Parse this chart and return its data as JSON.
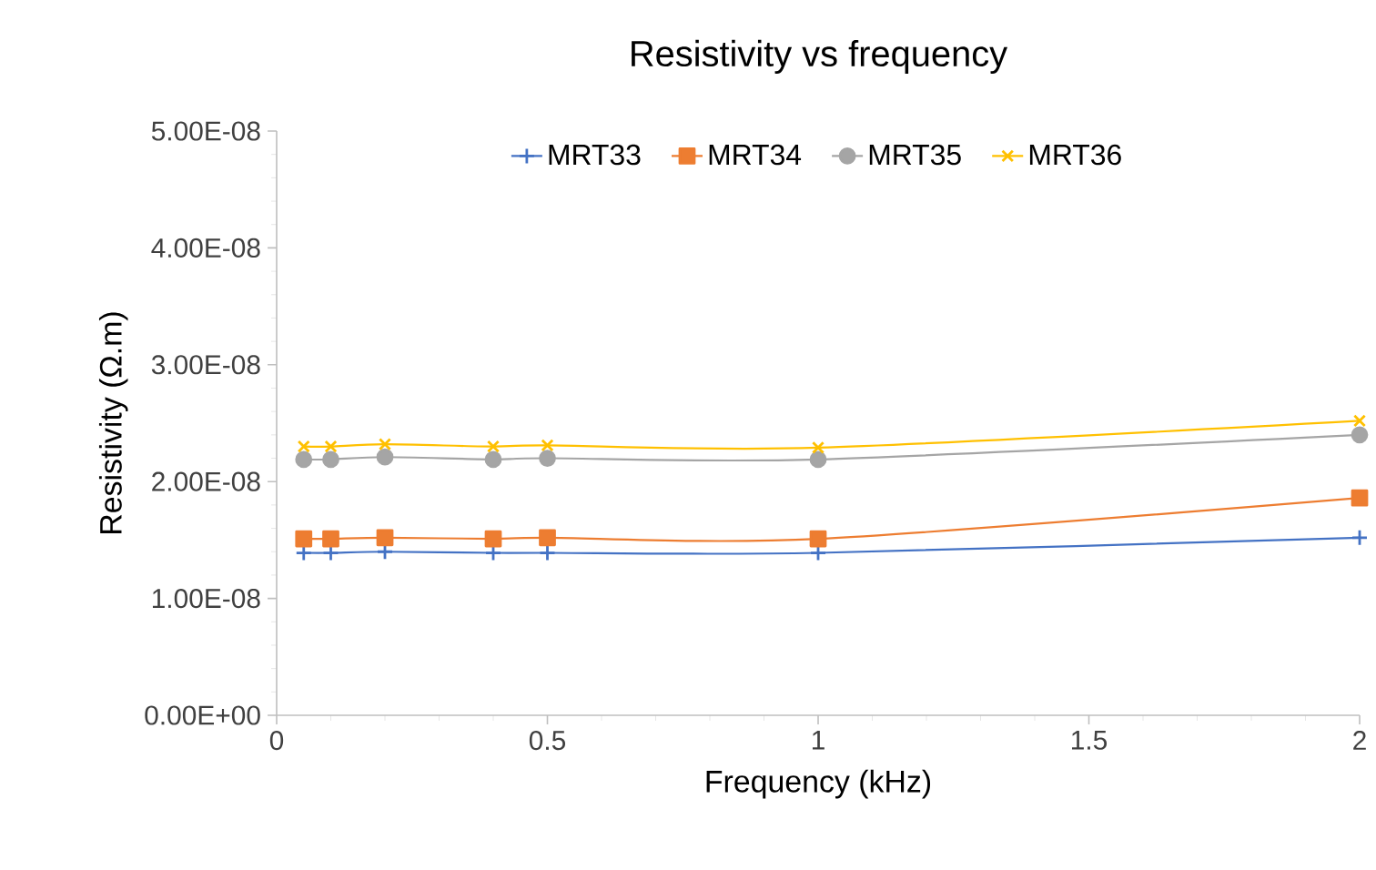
{
  "chart_data": {
    "type": "line",
    "title": "Resistivity vs frequency",
    "xlabel": "Frequency (kHz)",
    "ylabel": "Resistivity (Ω.m)",
    "x": [
      0.05,
      0.1,
      0.2,
      0.4,
      0.5,
      1,
      2
    ],
    "series": [
      {
        "name": "MRT33",
        "color": "#4472c4",
        "marker": "plus",
        "values": [
          1.39e-08,
          1.39e-08,
          1.4e-08,
          1.39e-08,
          1.39e-08,
          1.39e-08,
          1.52e-08
        ]
      },
      {
        "name": "MRT34",
        "color": "#ed7d31",
        "marker": "square",
        "values": [
          1.51e-08,
          1.51e-08,
          1.52e-08,
          1.51e-08,
          1.52e-08,
          1.51e-08,
          1.86e-08
        ]
      },
      {
        "name": "MRT35",
        "color": "#a5a5a5",
        "marker": "circle",
        "values": [
          2.19e-08,
          2.19e-08,
          2.21e-08,
          2.19e-08,
          2.2e-08,
          2.19e-08,
          2.4e-08
        ]
      },
      {
        "name": "MRT36",
        "color": "#ffc000",
        "marker": "cross",
        "values": [
          2.3e-08,
          2.3e-08,
          2.32e-08,
          2.3e-08,
          2.31e-08,
          2.29e-08,
          2.52e-08
        ]
      }
    ],
    "xlim": [
      0,
      2
    ],
    "xticks": [
      0,
      0.5,
      1,
      1.5,
      2
    ],
    "ylim": [
      0,
      5e-08
    ],
    "yticks": [
      {
        "value": 0,
        "label": "0.00E+00"
      },
      {
        "value": 1e-08,
        "label": "1.00E-08"
      },
      {
        "value": 2e-08,
        "label": "2.00E-08"
      },
      {
        "value": 3e-08,
        "label": "3.00E-08"
      },
      {
        "value": 4e-08,
        "label": "4.00E-08"
      },
      {
        "value": 5e-08,
        "label": "5.00E-08"
      }
    ],
    "grid": false,
    "legend": "top",
    "line_style": "solid"
  }
}
